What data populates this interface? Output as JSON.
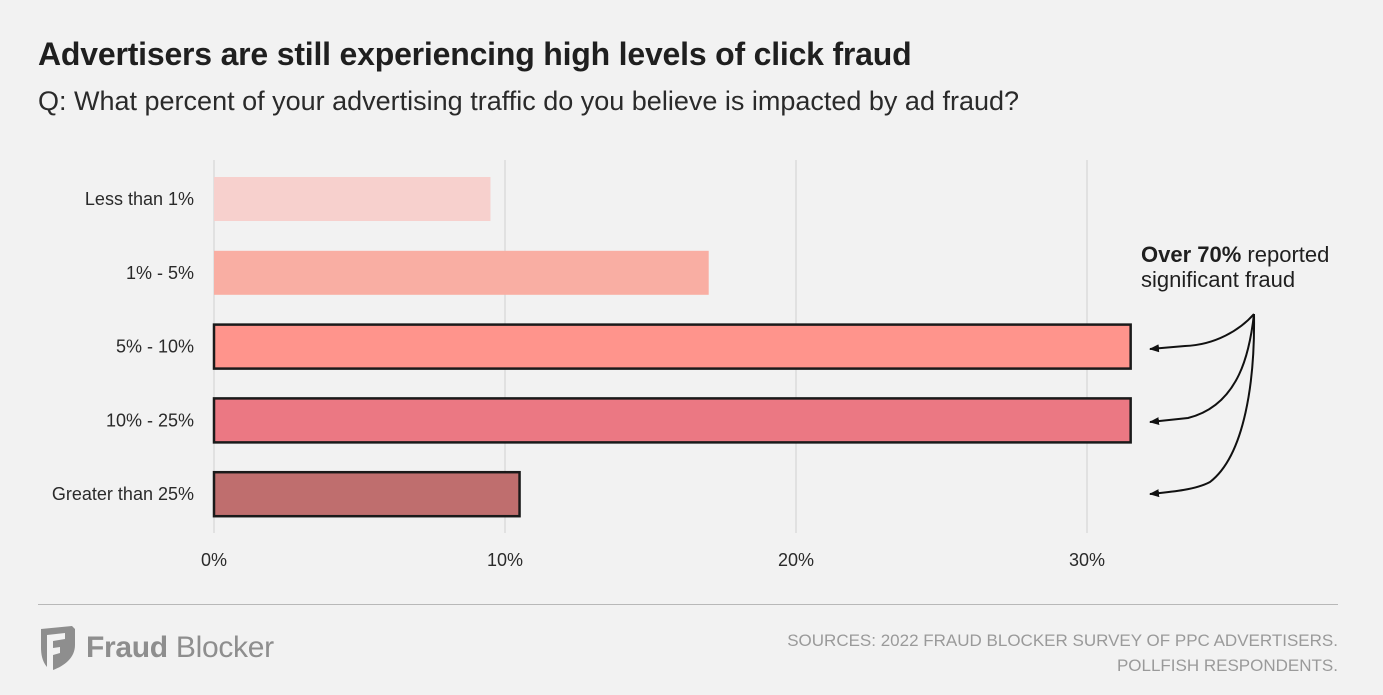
{
  "header": {
    "title": "Advertisers are still experiencing high levels of click fraud",
    "subtitle": "Q: What percent of your advertising traffic do you believe is impacted by ad fraud?"
  },
  "annotation": {
    "bold": "Over 70%",
    "line1_rest": " reported",
    "line2": "significant fraud"
  },
  "footer": {
    "logo_bold": "Fraud",
    "logo_rest": " Blocker",
    "sources_line1": "SOURCES: 2022 FRAUD BLOCKER SURVEY OF PPC ADVERTISERS.",
    "sources_line2": "POLLFISH RESPONDENTS."
  },
  "chart_data": {
    "type": "bar",
    "orientation": "horizontal",
    "categories": [
      "Less than 1%",
      "1% - 5%",
      "5% - 10%",
      "10% - 25%",
      "Greater than 25%"
    ],
    "values": [
      9.5,
      17,
      31.5,
      31.5,
      10.5
    ],
    "colors": [
      "#f7d0cd",
      "#f9aea3",
      "#ff948c",
      "#eb7883",
      "#bf6e6e"
    ],
    "outlined": [
      false,
      false,
      true,
      true,
      true
    ],
    "xlim": [
      0,
      33
    ],
    "xticks": [
      0,
      10,
      20,
      30
    ],
    "xtick_labels": [
      "0%",
      "10%",
      "20%",
      "30%"
    ],
    "grid": true,
    "title": "Advertisers are still experiencing high levels of click fraud",
    "xlabel": "",
    "ylabel": ""
  }
}
